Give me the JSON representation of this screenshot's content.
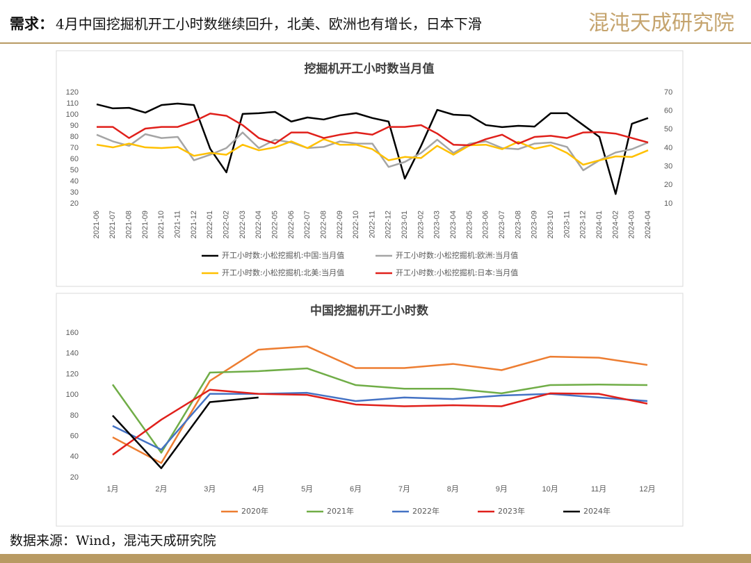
{
  "header": {
    "title_lead": "需求：",
    "title": "4月中国挖掘机开工小时数继续回升，北美、欧洲也有增长，日本下滑",
    "logo": "混沌天成研究院"
  },
  "source": "数据来源：Wind，混沌天成研究院",
  "chart_data": [
    {
      "type": "line",
      "title": "挖掘机开工小时数当月值",
      "categories": [
        "2021-06",
        "2021-07",
        "2021-08",
        "2021-09",
        "2021-10",
        "2021-11",
        "2021-12",
        "2022-01",
        "2022-02",
        "2022-03",
        "2022-04",
        "2022-05",
        "2022-06",
        "2022-07",
        "2022-08",
        "2022-09",
        "2022-10",
        "2022-11",
        "2022-12",
        "2023-01",
        "2023-02",
        "2023-03",
        "2023-04",
        "2023-05",
        "2023-06",
        "2023-07",
        "2023-08",
        "2023-09",
        "2023-10",
        "2023-11",
        "2023-12",
        "2024-01",
        "2024-02",
        "2024-03",
        "2024-04"
      ],
      "ylim": [
        20,
        120
      ],
      "yticks": [
        20,
        30,
        40,
        50,
        60,
        70,
        80,
        90,
        100,
        110,
        120
      ],
      "y2lim": [
        10,
        70
      ],
      "y2ticks": [
        10,
        20,
        30,
        40,
        50,
        60,
        70
      ],
      "grid": false,
      "series": [
        {
          "name": "开工小时数:小松挖掘机:中国:当月值",
          "color": "#000000",
          "axis": "y2",
          "values": [
            63.6,
            61.4,
            61.7,
            59.1,
            63.2,
            64,
            63.2,
            39.6,
            26.9,
            58.4,
            58.8,
            59.5,
            54.3,
            56.5,
            55.4,
            57.6,
            58.8,
            56.2,
            54.3,
            23.5,
            41.1,
            60.6,
            58,
            57.6,
            52.4,
            51.3,
            52,
            51.6,
            58.8,
            58.8,
            52.4,
            46,
            15.2,
            53.1,
            56.2
          ]
        },
        {
          "name": "开工小时数:小松挖掘机:欧洲:当月值",
          "color": "#A5A5A5",
          "values": [
            82,
            76,
            72,
            82.5,
            79,
            80,
            59,
            64,
            70,
            84,
            70,
            77.5,
            75,
            70,
            71,
            76,
            74,
            74,
            53,
            57.5,
            65.6,
            77.5,
            65.6,
            74,
            76,
            70,
            69,
            74,
            75,
            71,
            50,
            59,
            66,
            69,
            75
          ]
        },
        {
          "name": "开工小时数:小松挖掘机:北美:当月值",
          "color": "#FFC000",
          "values": [
            73,
            70.6,
            74,
            70.6,
            70,
            71,
            63,
            65.6,
            64,
            73,
            68,
            70.6,
            76,
            70,
            78,
            73,
            73,
            69,
            59,
            62,
            61,
            72,
            64,
            72.5,
            73,
            69,
            75.6,
            69.4,
            72.5,
            65.6,
            55,
            59,
            62.5,
            62,
            68
          ]
        },
        {
          "name": "开工小时数:小松挖掘机:日本:当月值",
          "color": "#E0201B",
          "values": [
            89,
            89,
            79,
            87.5,
            89,
            89,
            94,
            101,
            99,
            90.6,
            79,
            74,
            84,
            84,
            79,
            82,
            84,
            82,
            89,
            89,
            90.6,
            83,
            73,
            72.5,
            78,
            82,
            74,
            80,
            81,
            79,
            84,
            84.4,
            83,
            79,
            75
          ]
        }
      ]
    },
    {
      "type": "line",
      "title": "中国挖掘机开工小时数",
      "categories": [
        "1月",
        "2月",
        "3月",
        "4月",
        "5月",
        "6月",
        "7月",
        "8月",
        "9月",
        "10月",
        "11月",
        "12月"
      ],
      "ylim": [
        20,
        160
      ],
      "yticks": [
        20,
        40,
        60,
        80,
        100,
        120,
        140,
        160
      ],
      "grid": false,
      "series": [
        {
          "name": "2020年",
          "color": "#ED7D31",
          "values": [
            59,
            34,
            113.6,
            143.8,
            147,
            126,
            126,
            130,
            124,
            137,
            136,
            129
          ]
        },
        {
          "name": "2021年",
          "color": "#70AD47",
          "values": [
            110,
            44,
            121.6,
            123,
            125.7,
            109.5,
            106,
            106,
            101.5,
            109.5,
            110,
            109.5
          ]
        },
        {
          "name": "2022年",
          "color": "#4472C4",
          "values": [
            70,
            47,
            101,
            101,
            102,
            94,
            97.5,
            96,
            99.4,
            101,
            97.5,
            94
          ]
        },
        {
          "name": "2023年",
          "color": "#E0201B",
          "values": [
            42,
            76,
            105,
            101,
            100,
            90.7,
            89,
            90,
            89,
            101.5,
            101,
            91.5
          ]
        },
        {
          "name": "2024年",
          "color": "#000000",
          "values": [
            80,
            29,
            93,
            97.5,
            null,
            null,
            null,
            null,
            null,
            null,
            null,
            null
          ]
        }
      ]
    }
  ]
}
